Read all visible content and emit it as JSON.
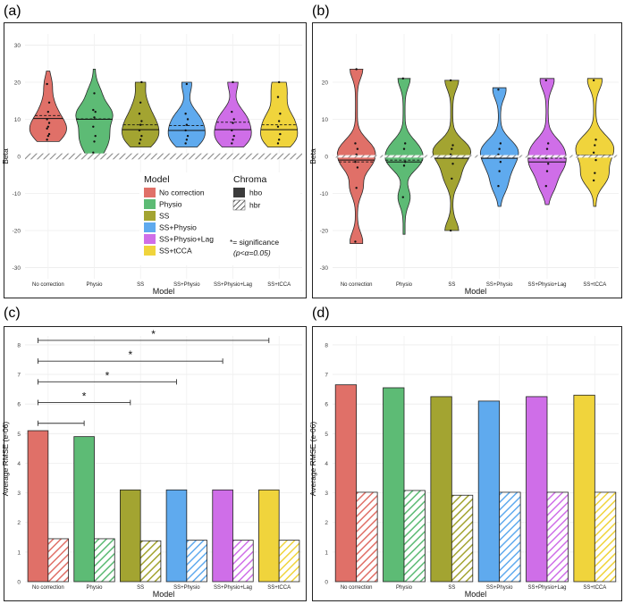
{
  "panels": {
    "a": {
      "label": "(a)"
    },
    "b": {
      "label": "(b)"
    },
    "c": {
      "label": "(c)"
    },
    "d": {
      "label": "(d)"
    }
  },
  "models": [
    "No correction",
    "Physio",
    "SS",
    "SS+Physio",
    "SS+Physio+Lag",
    "SS+tCCA"
  ],
  "colors": {
    "No correction": "#E07068",
    "Physio": "#5DBB75",
    "SS": "#A3A431",
    "SS+Physio": "#5FAAEE",
    "SS+Physio+Lag": "#CF6EE8",
    "SS+tCCA": "#F0D43C",
    "hbr_band": "#9a9a9a"
  },
  "legend": {
    "model_title": "Model",
    "chroma_title": "Chroma",
    "chroma_items": [
      "hbo",
      "hbr"
    ],
    "significance_note_1": "*= significance",
    "significance_note_2": "(p<α=0.05)"
  },
  "chart_data": [
    {
      "panel": "a",
      "type": "violin",
      "xlabel": "Model",
      "ylabel": "Beta",
      "ylim": [
        -33,
        33
      ],
      "yticks": [
        -30,
        -20,
        -10,
        0,
        10,
        20,
        30
      ],
      "categories": [
        "No correction",
        "Physio",
        "SS",
        "SS+Physio",
        "SS+Physio+Lag",
        "SS+tCCA"
      ],
      "hbr_band_range": [
        -0.8,
        0.8
      ],
      "series": [
        {
          "name": "No correction",
          "min": 4,
          "max": 23,
          "median": 10.2,
          "mean": 11.0,
          "points": [
            4.5,
            5.5,
            6,
            7.5,
            8,
            9,
            10,
            12,
            14.5,
            19.5
          ]
        },
        {
          "name": "Physio",
          "min": 0.5,
          "max": 23.5,
          "median": 10,
          "mean": 10.1,
          "points": [
            1,
            4,
            5.5,
            8,
            10.5,
            12,
            12.5,
            17
          ]
        },
        {
          "name": "SS",
          "min": 2.5,
          "max": 20,
          "median": 7.2,
          "mean": 8.5,
          "points": [
            3.5,
            4.5,
            5.5,
            7,
            8.5,
            9.5,
            11.5,
            14.5,
            20
          ]
        },
        {
          "name": "SS+Physio",
          "min": 2.5,
          "max": 20,
          "median": 7,
          "mean": 8.3,
          "points": [
            3.5,
            4.5,
            5.5,
            7,
            8.5,
            10,
            11.5,
            19.5
          ]
        },
        {
          "name": "SS+Physio+Lag",
          "min": 2.5,
          "max": 20,
          "median": 7.2,
          "mean": 9.2,
          "points": [
            3.5,
            4.5,
            5.5,
            7,
            9,
            10,
            12,
            20
          ]
        },
        {
          "name": "SS+tCCA",
          "min": 2.5,
          "max": 20,
          "median": 7.2,
          "mean": 8.5,
          "points": [
            3.5,
            4.5,
            6,
            8,
            9.5,
            11.5,
            16,
            20
          ]
        }
      ]
    },
    {
      "panel": "b",
      "type": "violin",
      "xlabel": "Model",
      "ylabel": "Beta",
      "ylim": [
        -33,
        33
      ],
      "yticks": [
        -30,
        -20,
        -10,
        0,
        10,
        20
      ],
      "categories": [
        "No correction",
        "Physio",
        "SS",
        "SS+Physio",
        "SS+Physio+Lag",
        "SS+tCCA"
      ],
      "series": [
        {
          "name": "No correction",
          "min": -23.5,
          "max": 23.5,
          "median": -1,
          "mean": -1.5,
          "points": [
            -23,
            -8.5,
            -3,
            -1.5,
            0.5,
            2,
            3.5,
            23.5
          ]
        },
        {
          "name": "Physio",
          "min": -21,
          "max": 21,
          "median": -1.5,
          "mean": -1.0,
          "points": [
            -11,
            -2.5,
            -1.5,
            0,
            2,
            3.5,
            21
          ]
        },
        {
          "name": "SS",
          "min": -20,
          "max": 20.5,
          "median": -0.5,
          "mean": -0.5,
          "points": [
            -20,
            -6,
            -2,
            0.5,
            2,
            3,
            20.5
          ]
        },
        {
          "name": "SS+Physio",
          "min": -13.5,
          "max": 18.5,
          "median": -0.5,
          "mean": -0.3,
          "points": [
            -8,
            -4,
            -1.5,
            0.5,
            2,
            3.5,
            18
          ]
        },
        {
          "name": "SS+Physio+Lag",
          "min": -13,
          "max": 21,
          "median": -1.5,
          "mean": -0.5,
          "points": [
            -8,
            -4,
            -2,
            -0.5,
            2,
            3.5,
            20.5
          ]
        },
        {
          "name": "SS+tCCA",
          "min": -13.5,
          "max": 21,
          "median": 0.3,
          "mean": 0.3,
          "points": [
            -6.5,
            -4.5,
            -1,
            1,
            3,
            4.5,
            20.5
          ]
        }
      ]
    },
    {
      "panel": "c",
      "type": "bar",
      "xlabel": "Model",
      "ylabel": "Average RMSE (e-06)",
      "ylim": [
        0,
        8.3
      ],
      "yticks": [
        0,
        1,
        2,
        3,
        4,
        5,
        6,
        7,
        8
      ],
      "categories": [
        "No correction",
        "Physio",
        "SS",
        "SS+Physio",
        "SS+Physio+Lag",
        "SS+tCCA"
      ],
      "series": [
        {
          "name": "hbo",
          "values": [
            5.1,
            4.9,
            3.1,
            3.1,
            3.1,
            3.1
          ]
        },
        {
          "name": "hbr",
          "values": [
            1.45,
            1.45,
            1.38,
            1.4,
            1.4,
            1.4
          ]
        }
      ],
      "significance": [
        {
          "from": "No correction",
          "to": "Physio",
          "y": 5.35,
          "label": ""
        },
        {
          "from": "No correction",
          "to": "SS",
          "y": 6.05,
          "label": "*"
        },
        {
          "from": "No correction",
          "to": "SS+Physio",
          "y": 6.75,
          "label": "*"
        },
        {
          "from": "No correction",
          "to": "SS+Physio+Lag",
          "y": 7.45,
          "label": "*"
        },
        {
          "from": "No correction",
          "to": "SS+tCCA",
          "y": 8.15,
          "label": "*"
        }
      ]
    },
    {
      "panel": "d",
      "type": "bar",
      "xlabel": "Model",
      "ylabel": "Average RMSE (e-06)",
      "ylim": [
        0,
        8.3
      ],
      "yticks": [
        0,
        1,
        2,
        3,
        4,
        5,
        6,
        7,
        8
      ],
      "categories": [
        "No correction",
        "Physio",
        "SS",
        "SS+Physio",
        "SS+Physio+Lag",
        "SS+tCCA"
      ],
      "series": [
        {
          "name": "hbo",
          "values": [
            6.65,
            6.55,
            6.25,
            6.1,
            6.25,
            6.3
          ]
        },
        {
          "name": "hbr",
          "values": [
            3.02,
            3.08,
            2.92,
            3.02,
            3.02,
            3.02
          ]
        }
      ]
    }
  ]
}
